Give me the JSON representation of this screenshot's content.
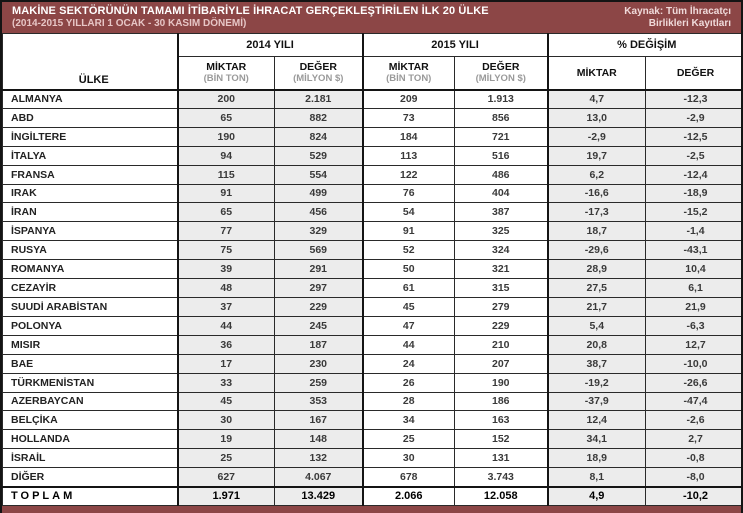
{
  "header": {
    "title": "MAKİNE SEKTÖRÜNÜN TAMAMI İTİBARİYLE İHRACAT GERÇEKLEŞTİRİLEN İLK 20 ÜLKE",
    "subtitle": "(2014-2015 YILLARI 1 OCAK - 30 KASIM DÖNEMİ)",
    "source_line1": "Kaynak: Tüm İhracatçı",
    "source_line2": "Birlikleri Kayıtları"
  },
  "colors": {
    "band_maroon": "#8c4646",
    "shade_gray": "#ececec",
    "border_black": "#141414",
    "unit_gray": "#9a9a9a"
  },
  "chart_data": {
    "type": "table",
    "title": "MAKİNE SEKTÖRÜNÜN TAMAMI İTİBARİYLE İHRACAT GERÇEKLEŞTİRİLEN İLK 20 ÜLKE",
    "subtitle": "(2014-2015 YILLARI 1 OCAK - 30 KASIM DÖNEMİ)",
    "source": "Kaynak: Tüm İhracatçı Birlikleri Kayıtları",
    "ulke_header": "ÜLKE",
    "col_groups": [
      "2014 YILI",
      "2015 YILI",
      "% DEĞİŞİM"
    ],
    "columns": [
      {
        "label": "ÜLKE",
        "unit": ""
      },
      {
        "label": "MİKTAR",
        "unit": "(BİN TON)",
        "group": "2014 YILI"
      },
      {
        "label": "DEĞER",
        "unit": "(MİLYON $)",
        "group": "2014 YILI"
      },
      {
        "label": "MİKTAR",
        "unit": "(BİN TON)",
        "group": "2015 YILI"
      },
      {
        "label": "DEĞER",
        "unit": "(MİLYON $)",
        "group": "2015 YILI"
      },
      {
        "label": "MİKTAR",
        "unit": "",
        "group": "% DEĞİŞİM"
      },
      {
        "label": "DEĞER",
        "unit": "",
        "group": "% DEĞİŞİM"
      }
    ],
    "rows": [
      [
        "ALMANYA",
        "200",
        "2.181",
        "209",
        "1.913",
        "4,7",
        "-12,3"
      ],
      [
        "ABD",
        "65",
        "882",
        "73",
        "856",
        "13,0",
        "-2,9"
      ],
      [
        "İNGİLTERE",
        "190",
        "824",
        "184",
        "721",
        "-2,9",
        "-12,5"
      ],
      [
        "İTALYA",
        "94",
        "529",
        "113",
        "516",
        "19,7",
        "-2,5"
      ],
      [
        "FRANSA",
        "115",
        "554",
        "122",
        "486",
        "6,2",
        "-12,4"
      ],
      [
        "IRAK",
        "91",
        "499",
        "76",
        "404",
        "-16,6",
        "-18,9"
      ],
      [
        "İRAN",
        "65",
        "456",
        "54",
        "387",
        "-17,3",
        "-15,2"
      ],
      [
        "İSPANYA",
        "77",
        "329",
        "91",
        "325",
        "18,7",
        "-1,4"
      ],
      [
        "RUSYA",
        "75",
        "569",
        "52",
        "324",
        "-29,6",
        "-43,1"
      ],
      [
        "ROMANYA",
        "39",
        "291",
        "50",
        "321",
        "28,9",
        "10,4"
      ],
      [
        "CEZAYİR",
        "48",
        "297",
        "61",
        "315",
        "27,5",
        "6,1"
      ],
      [
        "SUUDİ ARABİSTAN",
        "37",
        "229",
        "45",
        "279",
        "21,7",
        "21,9"
      ],
      [
        "POLONYA",
        "44",
        "245",
        "47",
        "229",
        "5,4",
        "-6,3"
      ],
      [
        "MISIR",
        "36",
        "187",
        "44",
        "210",
        "20,8",
        "12,7"
      ],
      [
        "BAE",
        "17",
        "230",
        "24",
        "207",
        "38,7",
        "-10,0"
      ],
      [
        "TÜRKMENİSTAN",
        "33",
        "259",
        "26",
        "190",
        "-19,2",
        "-26,6"
      ],
      [
        "AZERBAYCAN",
        "45",
        "353",
        "28",
        "186",
        "-37,9",
        "-47,4"
      ],
      [
        "BELÇİKA",
        "30",
        "167",
        "34",
        "163",
        "12,4",
        "-2,6"
      ],
      [
        "HOLLANDA",
        "19",
        "148",
        "25",
        "152",
        "34,1",
        "2,7"
      ],
      [
        "İSRAİL",
        "25",
        "132",
        "30",
        "131",
        "18,9",
        "-0,8"
      ],
      [
        "DİĞER",
        "627",
        "4.067",
        "678",
        "3.743",
        "8,1",
        "-8,0"
      ]
    ],
    "total_row": [
      "TOPLAM",
      "1.971",
      "13.429",
      "2.066",
      "12.058",
      "4,9",
      "-10,2"
    ]
  }
}
